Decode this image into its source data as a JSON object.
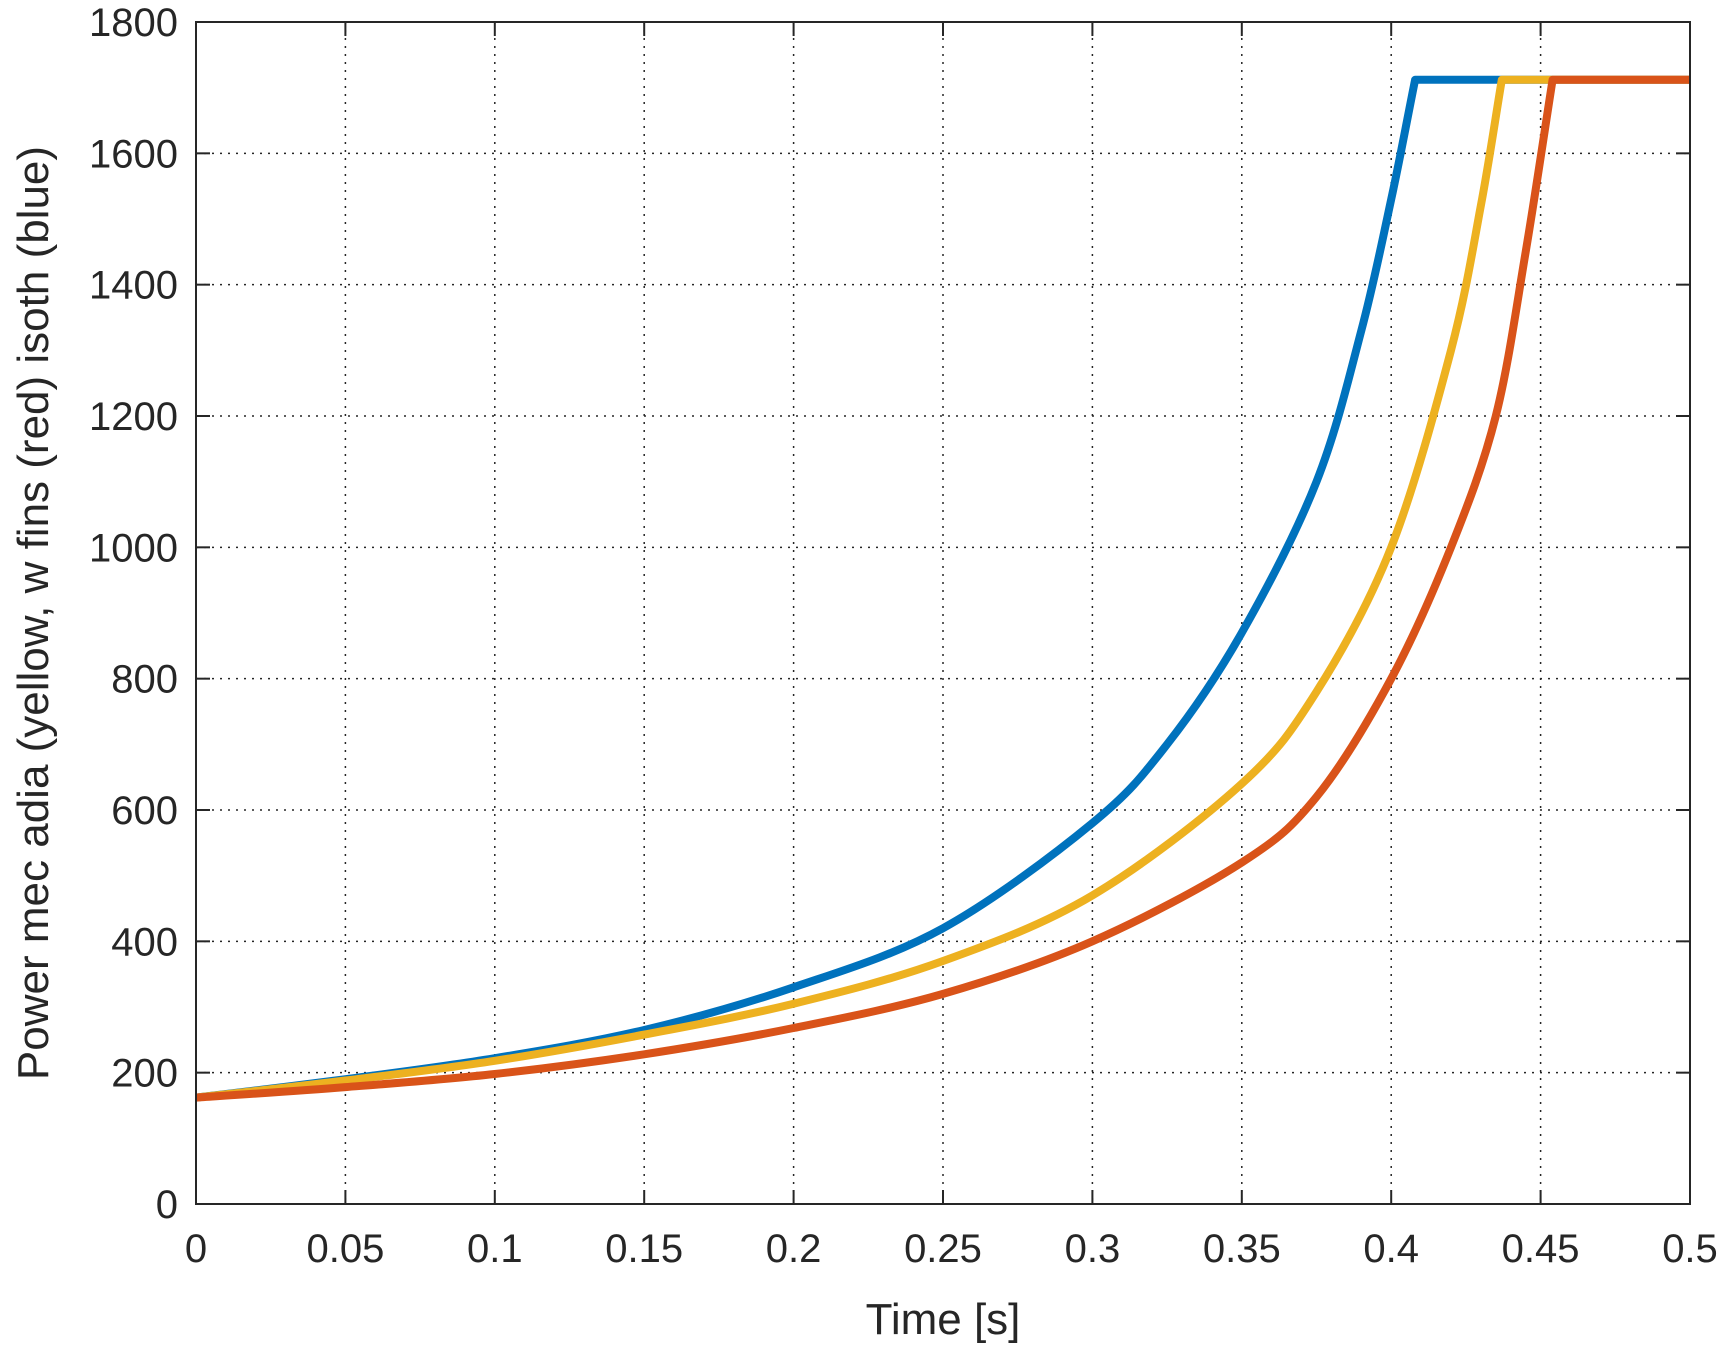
{
  "chart_data": {
    "type": "line",
    "title": "",
    "xlabel": "Time [s]",
    "ylabel": "Power mec adia (yellow, w fins (red) isoth (blue)",
    "xlim": [
      0,
      0.5
    ],
    "ylim": [
      0,
      1800
    ],
    "xticks": [
      0,
      0.05,
      0.1,
      0.15,
      0.2,
      0.25,
      0.3,
      0.35,
      0.4,
      0.45,
      0.5
    ],
    "xtick_labels": [
      "0",
      "0.05",
      "0.1",
      "0.15",
      "0.2",
      "0.25",
      "0.3",
      "0.35",
      "0.4",
      "0.45",
      "0.5"
    ],
    "yticks": [
      0,
      200,
      400,
      600,
      800,
      1000,
      1200,
      1400,
      1600,
      1800
    ],
    "ytick_labels": [
      "0",
      "200",
      "400",
      "600",
      "800",
      "1000",
      "1200",
      "1400",
      "1600",
      "1800"
    ],
    "grid": true,
    "legend": "none",
    "series": [
      {
        "color": "#0072BD",
        "x": [
          0,
          0.05,
          0.1,
          0.15,
          0.2,
          0.25,
          0.3,
          0.325,
          0.35,
          0.375,
          0.39,
          0.4,
          0.408,
          0.5
        ],
        "y": [
          162,
          190,
          222,
          265,
          330,
          420,
          580,
          700,
          870,
          1100,
          1330,
          1530,
          1712,
          1712
        ]
      },
      {
        "color": "#EDB120",
        "x": [
          0,
          0.05,
          0.1,
          0.15,
          0.2,
          0.25,
          0.3,
          0.35,
          0.375,
          0.4,
          0.42,
          0.43,
          0.437,
          0.5
        ],
        "y": [
          162,
          188,
          218,
          258,
          305,
          370,
          470,
          640,
          780,
          1000,
          1300,
          1520,
          1712,
          1712
        ]
      },
      {
        "color": "#D95319",
        "x": [
          0,
          0.05,
          0.1,
          0.15,
          0.2,
          0.25,
          0.3,
          0.35,
          0.375,
          0.4,
          0.42,
          0.435,
          0.445,
          0.454,
          0.5
        ],
        "y": [
          162,
          178,
          198,
          228,
          268,
          320,
          400,
          520,
          620,
          800,
          1000,
          1200,
          1450,
          1712,
          1712
        ]
      }
    ]
  }
}
